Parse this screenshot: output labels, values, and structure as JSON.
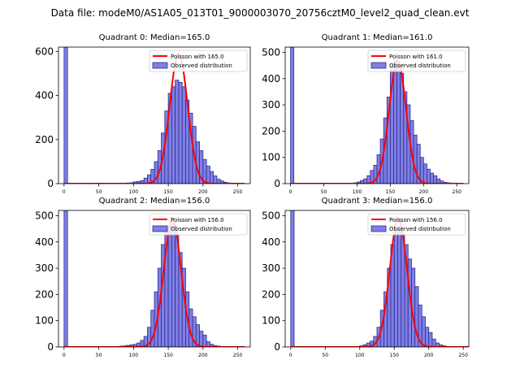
{
  "figure": {
    "suptitle": "Data file: modeM0/AS1A05_013T01_9000003070_20756cztM0_level2_quad_clean.evt"
  },
  "colors": {
    "bar_fill": "#7f7fe6",
    "bar_edge": "#2e2e8a",
    "poisson_line": "#ff0000",
    "axis": "#000000"
  },
  "chart_data": [
    {
      "type": "bar",
      "title": "Quadrant 0: Median=165.0",
      "xlim": [
        -8,
        268
      ],
      "ylim": [
        0,
        620
      ],
      "xticks": [
        0,
        50,
        100,
        150,
        200,
        250
      ],
      "yticks": [
        0,
        200,
        400,
        600
      ],
      "bin_width": 5,
      "legend": {
        "position": "top-right",
        "entries": [
          "Poisson with 165.0",
          "Observed distribution"
        ]
      },
      "series": [
        {
          "name": "Observed distribution",
          "bin_starts": [
            0,
            85,
            90,
            95,
            100,
            105,
            110,
            115,
            120,
            125,
            130,
            135,
            140,
            145,
            150,
            155,
            160,
            165,
            170,
            175,
            180,
            185,
            190,
            195,
            200,
            205,
            210,
            215,
            220,
            225,
            230,
            235,
            240,
            245,
            250
          ],
          "values": [
            620,
            2,
            3,
            4,
            8,
            10,
            14,
            25,
            40,
            65,
            100,
            150,
            230,
            330,
            410,
            440,
            470,
            460,
            440,
            380,
            320,
            260,
            190,
            150,
            110,
            80,
            55,
            35,
            20,
            12,
            6,
            3,
            2,
            1,
            0
          ]
        },
        {
          "name": "Poisson with 165.0",
          "mean": 165.0,
          "peak": 590
        }
      ]
    },
    {
      "type": "bar",
      "title": "Quadrant 1: Median=161.0",
      "xlim": [
        -8,
        268
      ],
      "ylim": [
        0,
        520
      ],
      "xticks": [
        0,
        50,
        100,
        150,
        200,
        250
      ],
      "yticks": [
        0,
        100,
        200,
        300,
        400,
        500
      ],
      "bin_width": 5,
      "legend": {
        "position": "top-right",
        "entries": [
          "Poisson with 161.0",
          "Observed distribution"
        ]
      },
      "series": [
        {
          "name": "Observed distribution",
          "bin_starts": [
            0,
            95,
            100,
            105,
            110,
            115,
            120,
            125,
            130,
            135,
            140,
            145,
            150,
            155,
            160,
            165,
            170,
            175,
            180,
            185,
            190,
            195,
            200,
            205,
            210,
            215,
            220,
            225,
            230,
            235,
            240,
            245,
            250
          ],
          "values": [
            520,
            3,
            6,
            12,
            18,
            30,
            50,
            70,
            110,
            170,
            250,
            330,
            450,
            470,
            460,
            420,
            350,
            300,
            240,
            185,
            150,
            100,
            75,
            55,
            40,
            30,
            18,
            10,
            5,
            3,
            2,
            1,
            0
          ]
        },
        {
          "name": "Poisson with 161.0",
          "mean": 161.0,
          "peak": 470
        }
      ]
    },
    {
      "type": "bar",
      "title": "Quadrant 2: Median=156.0",
      "xlim": [
        -8,
        268
      ],
      "ylim": [
        0,
        520
      ],
      "xticks": [
        0,
        50,
        100,
        150,
        200,
        250
      ],
      "yticks": [
        0,
        100,
        200,
        300,
        400,
        500
      ],
      "bin_width": 5,
      "legend": {
        "position": "top-right",
        "entries": [
          "Poisson with 156.0",
          "Observed distribution"
        ]
      },
      "series": [
        {
          "name": "Observed distribution",
          "bin_starts": [
            0,
            80,
            85,
            90,
            95,
            100,
            105,
            110,
            115,
            120,
            125,
            130,
            135,
            140,
            145,
            150,
            155,
            160,
            165,
            170,
            175,
            180,
            185,
            190,
            195,
            200,
            205,
            210,
            215,
            220,
            225,
            230,
            235
          ],
          "values": [
            520,
            3,
            4,
            6,
            8,
            10,
            15,
            25,
            40,
            75,
            140,
            210,
            300,
            390,
            450,
            460,
            470,
            430,
            360,
            300,
            210,
            145,
            115,
            85,
            60,
            45,
            20,
            10,
            5,
            3,
            2,
            1,
            0
          ]
        },
        {
          "name": "Poisson with 156.0",
          "mean": 156.0,
          "peak": 485
        }
      ]
    },
    {
      "type": "bar",
      "title": "Quadrant 3: Median=156.0",
      "xlim": [
        -8,
        258
      ],
      "ylim": [
        0,
        520
      ],
      "xticks": [
        0,
        50,
        100,
        150,
        200,
        250
      ],
      "yticks": [
        0,
        100,
        200,
        300,
        400,
        500
      ],
      "bin_width": 5,
      "legend": {
        "position": "top-right",
        "entries": [
          "Poisson with 156.0",
          "Observed distribution"
        ]
      },
      "series": [
        {
          "name": "Observed distribution",
          "bin_starts": [
            0,
            100,
            105,
            110,
            115,
            120,
            125,
            130,
            135,
            140,
            145,
            150,
            155,
            160,
            165,
            170,
            175,
            180,
            185,
            190,
            195,
            200,
            205,
            210,
            215,
            220,
            225,
            230,
            235
          ],
          "values": [
            520,
            4,
            8,
            15,
            22,
            40,
            75,
            140,
            210,
            300,
            390,
            440,
            460,
            430,
            390,
            335,
            300,
            230,
            160,
            115,
            75,
            55,
            30,
            15,
            8,
            4,
            2,
            1,
            0
          ]
        },
        {
          "name": "Poisson with 156.0",
          "mean": 156.0,
          "peak": 490
        }
      ]
    }
  ]
}
